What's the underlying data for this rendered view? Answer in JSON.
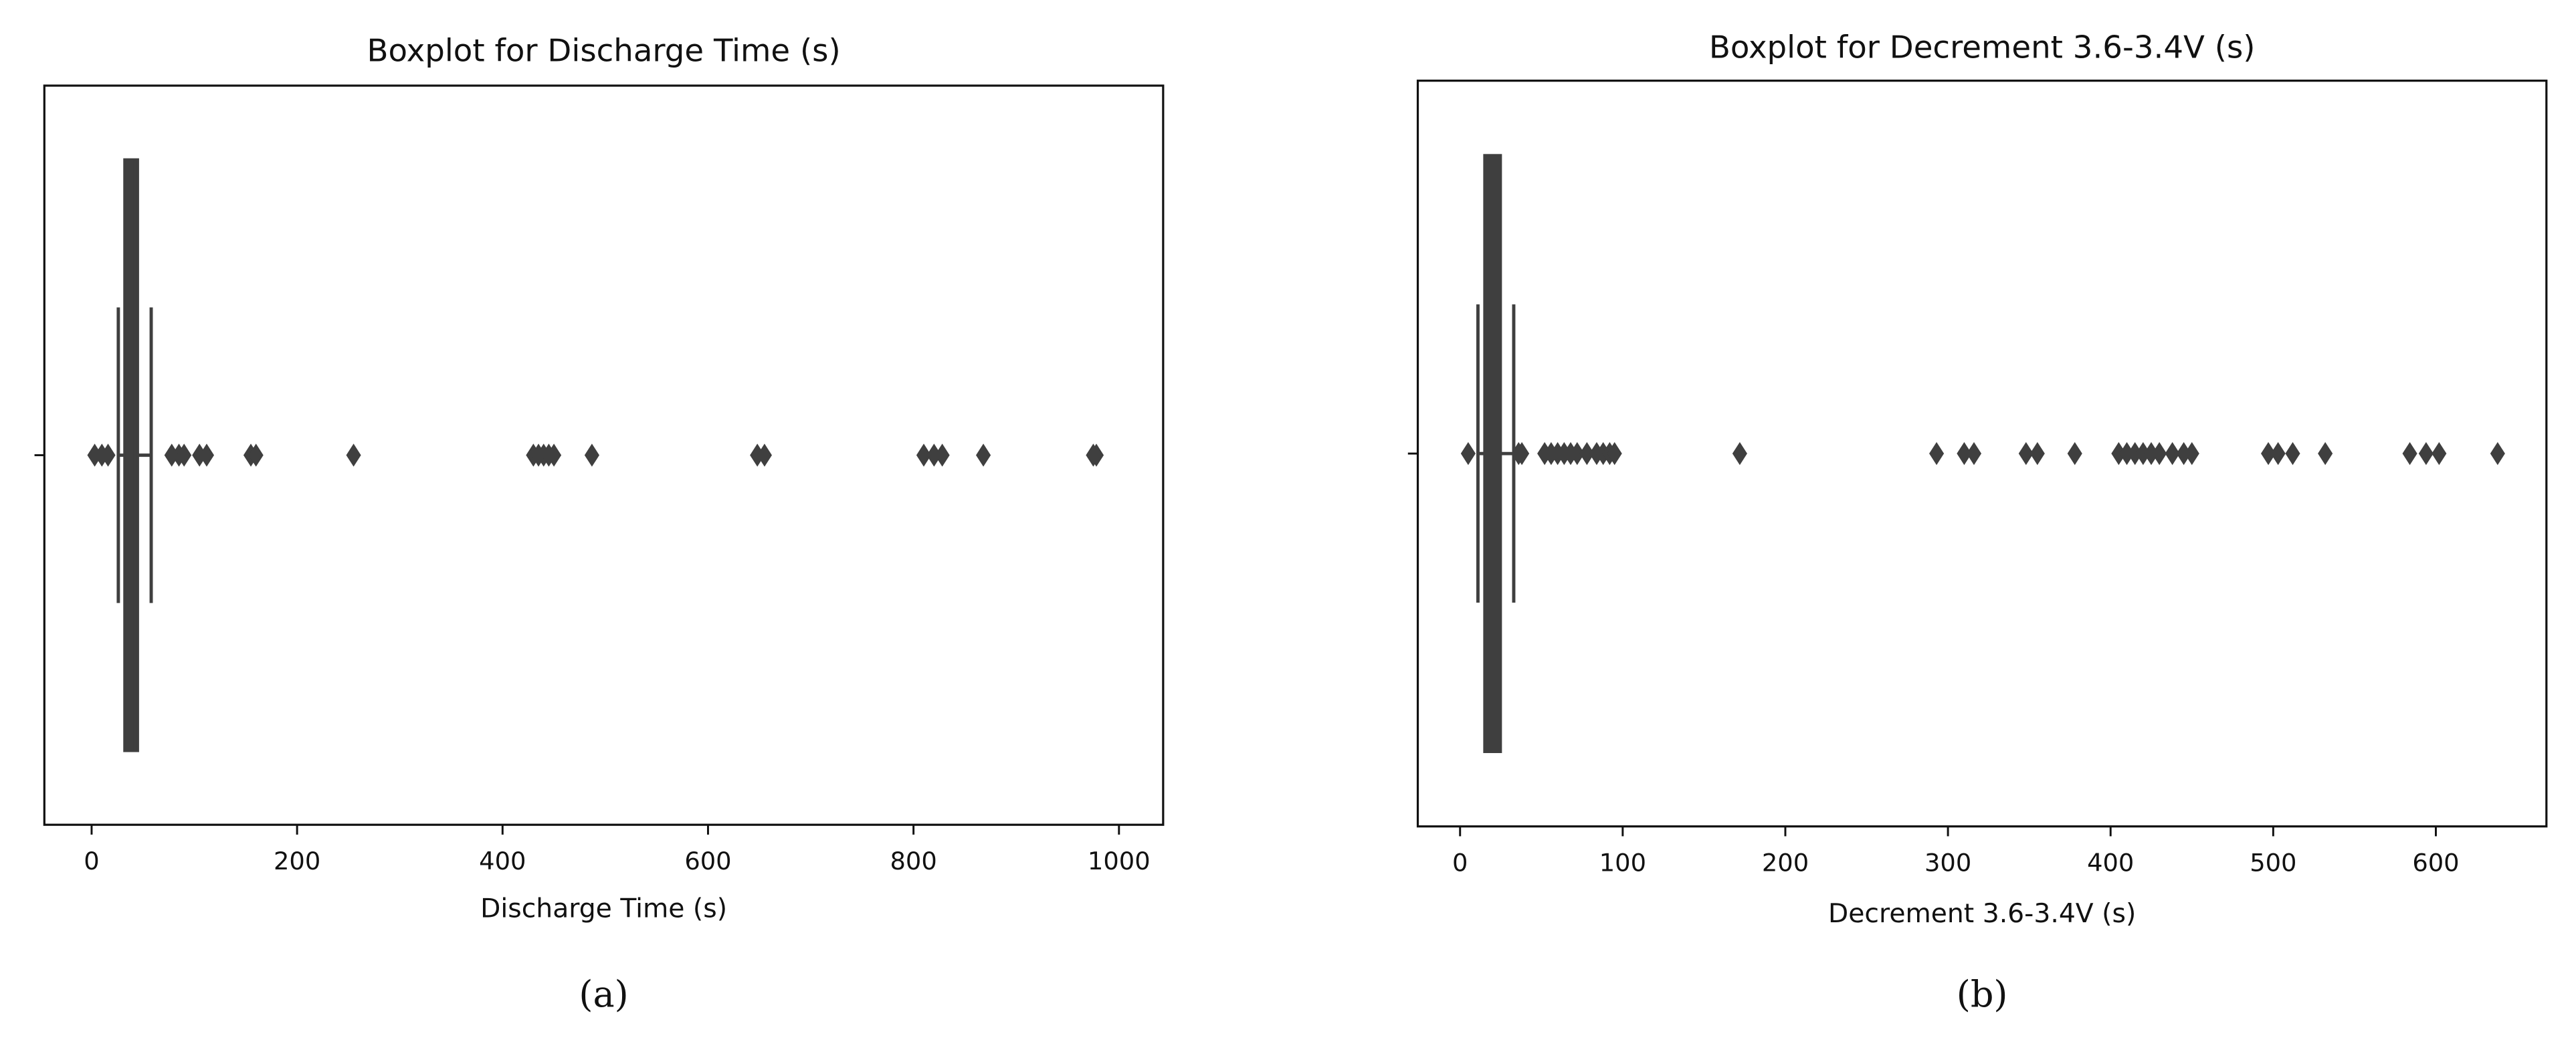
{
  "chart_data": [
    {
      "type": "box",
      "title": "Boxplot for Discharge Time (s)",
      "xlabel": "Discharge Time (s)",
      "caption": "(a)",
      "color": "#3f3f3f",
      "whisker_low": 26,
      "q1": 32,
      "median": 39,
      "q3": 45,
      "whisker_high": 58,
      "outliers": [
        3,
        10,
        16,
        78,
        85,
        90,
        105,
        112,
        155,
        160,
        255,
        430,
        435,
        440,
        445,
        450,
        487,
        648,
        655,
        810,
        820,
        828,
        868,
        975,
        978
      ],
      "xlim": [
        -46,
        1043
      ],
      "xticks": [
        0,
        200,
        400,
        600,
        800,
        1000
      ]
    },
    {
      "type": "box",
      "title": "Boxplot for Decrement 3.6-3.4V (s)",
      "xlabel": "Decrement 3.6-3.4V (s)",
      "caption": "(b)",
      "color": "#3f3f3f",
      "whisker_low": 11,
      "q1": 15,
      "median": 21,
      "q3": 25,
      "whisker_high": 33,
      "outliers": [
        5,
        36,
        38,
        52,
        56,
        60,
        64,
        68,
        72,
        78,
        84,
        88,
        92,
        95,
        172,
        293,
        310,
        316,
        348,
        355,
        378,
        405,
        410,
        415,
        420,
        425,
        430,
        438,
        445,
        450,
        497,
        503,
        512,
        532,
        584,
        594,
        602,
        638
      ],
      "xlim": [
        -26,
        668
      ],
      "xticks": [
        0,
        100,
        200,
        300,
        400,
        500,
        600
      ]
    }
  ]
}
